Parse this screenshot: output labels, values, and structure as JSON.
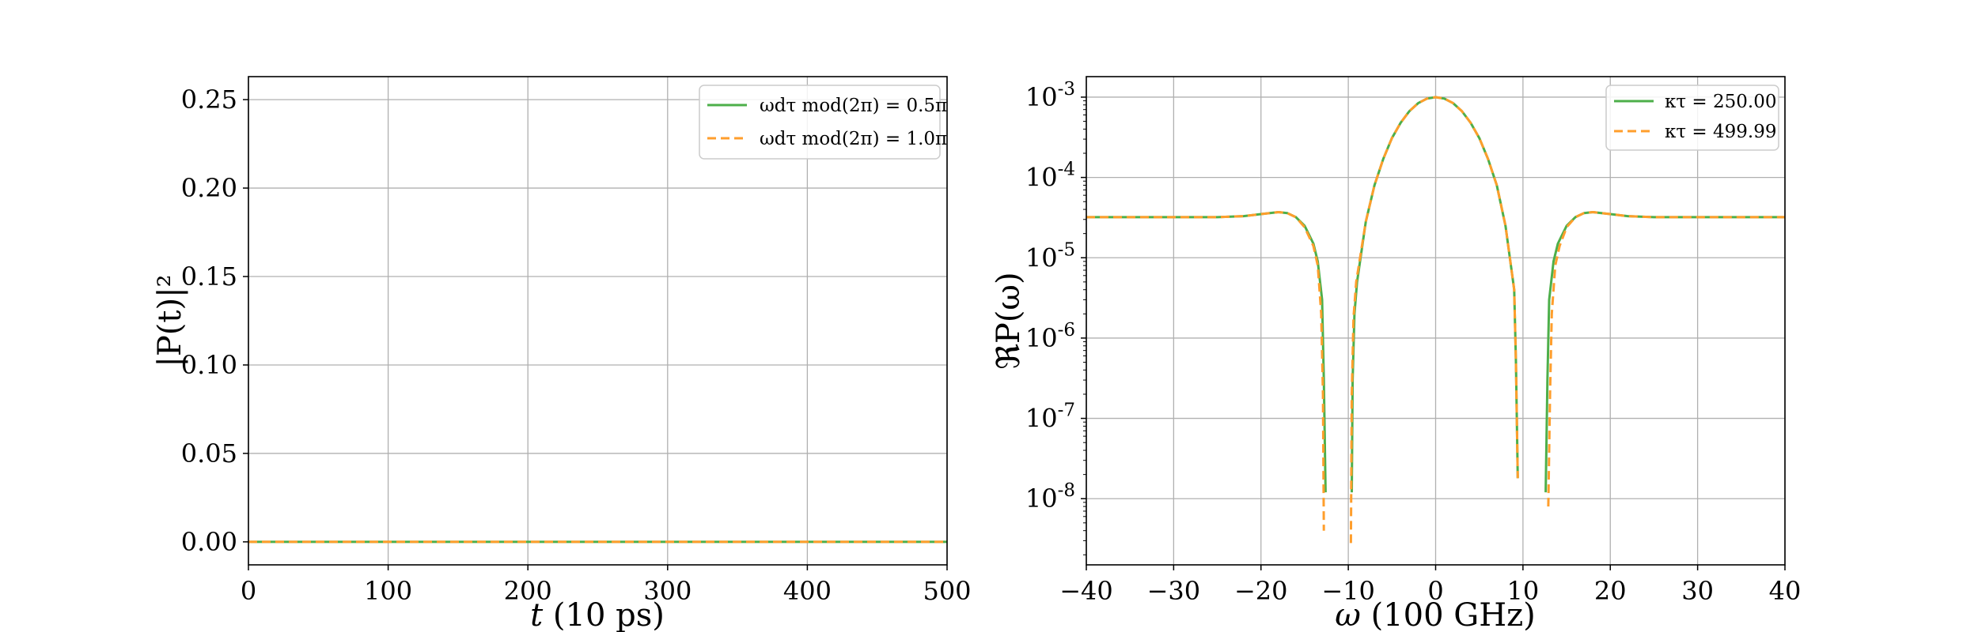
{
  "colors": {
    "green": "#4daf4a",
    "orange": "#ff9e2c",
    "grid": "#b0b0b0",
    "frame": "#000000",
    "background": "#ffffff"
  },
  "chart_data": [
    {
      "type": "line",
      "xlabel": "t (10 ps)",
      "ylabel": "|P(t)|²",
      "xlim": [
        0,
        500
      ],
      "ylim": [
        -0.013,
        0.263
      ],
      "xticks": [
        0,
        100,
        200,
        300,
        400,
        500
      ],
      "xtick_labels": [
        "0",
        "100",
        "200",
        "300",
        "400",
        "500"
      ],
      "yticks": [
        0.0,
        0.05,
        0.1,
        0.15,
        0.2,
        0.25
      ],
      "ytick_labels": [
        "0.00",
        "0.05",
        "0.10",
        "0.15",
        "0.20",
        "0.25"
      ],
      "grid": true,
      "legend_position": "top-right",
      "series": [
        {
          "name": "ωdτ mod(2π) = 0.5π",
          "style": "solid",
          "color": "#4daf4a",
          "x": [
            0,
            50,
            100,
            150,
            200,
            250,
            300,
            350,
            400,
            450,
            500
          ],
          "y": [
            0,
            0,
            0,
            0,
            0,
            0,
            0,
            0,
            0,
            0,
            0
          ]
        },
        {
          "name": "ωdτ mod(2π) = 1.0π",
          "style": "dashed",
          "color": "#ff9e2c",
          "x": [
            0,
            50,
            100,
            150,
            200,
            250,
            300,
            350,
            400,
            450,
            500
          ],
          "y": [
            0,
            0,
            0,
            0,
            0,
            0,
            0,
            0,
            0,
            0,
            0
          ]
        }
      ]
    },
    {
      "type": "line",
      "xlabel": "ω (100 GHz)",
      "ylabel": "ℜP(ω)",
      "xlim": [
        -40,
        40
      ],
      "ylim": [
        1.5e-09,
        0.0018
      ],
      "yscale": "log",
      "xticks": [
        -40,
        -30,
        -20,
        -10,
        0,
        10,
        20,
        30,
        40
      ],
      "xtick_labels": [
        "−40",
        "−30",
        "−20",
        "−10",
        "0",
        "10",
        "20",
        "30",
        "40"
      ],
      "yticks_exp": [
        -3,
        -4,
        -5,
        -6,
        -7,
        -8
      ],
      "grid": true,
      "legend_position": "top-right",
      "series": [
        {
          "name": "κτ = 250.00",
          "style": "solid",
          "color": "#4daf4a",
          "x": [
            -40,
            -30,
            -25,
            -22,
            -20,
            -18,
            -17,
            -16,
            -15,
            -14,
            -13.5,
            -13,
            -12.8,
            -12.6,
            null,
            -9.6,
            -9.5,
            -9.3,
            -9,
            -8,
            -7,
            -6,
            -5,
            -4,
            -3,
            -2,
            -1,
            0,
            1,
            2,
            3,
            4,
            5,
            6,
            7,
            8,
            9,
            9.2,
            9.4,
            null,
            12.6,
            12.8,
            13,
            13.5,
            14,
            15,
            16,
            17,
            18,
            20,
            22,
            25,
            30,
            40
          ],
          "y": [
            3.2e-05,
            3.2e-05,
            3.2e-05,
            3.3e-05,
            3.5e-05,
            3.7e-05,
            3.6e-05,
            3.2e-05,
            2.5e-05,
            1.5e-05,
            9e-06,
            3e-06,
            3e-07,
            1.2e-08,
            null,
            1.2e-08,
            3e-07,
            2e-06,
            5e-06,
            2.8e-05,
            8e-05,
            0.00017,
            0.00031,
            0.00048,
            0.00067,
            0.00084,
            0.00096,
            0.001,
            0.00096,
            0.00084,
            0.00067,
            0.00048,
            0.00031,
            0.00017,
            8e-05,
            2.5e-05,
            4e-06,
            5e-07,
            1.8e-08,
            null,
            1.2e-08,
            3e-07,
            3e-06,
            9e-06,
            1.5e-05,
            2.5e-05,
            3.2e-05,
            3.6e-05,
            3.7e-05,
            3.5e-05,
            3.3e-05,
            3.2e-05,
            3.2e-05,
            3.2e-05
          ]
        },
        {
          "name": "κτ = 499.99",
          "style": "dashed",
          "color": "#ff9e2c",
          "x": [
            -40,
            -30,
            -25,
            -22,
            -20,
            -18,
            -17,
            -16,
            -15,
            -14,
            -13.5,
            -13.1,
            -12.9,
            -12.8,
            null,
            -9.7,
            -9.6,
            -9.4,
            -9.1,
            -8,
            -7,
            -6,
            -5,
            -4,
            -3,
            -2,
            -1,
            0,
            1,
            2,
            3,
            4,
            5,
            6,
            7,
            8,
            9,
            9.2,
            9.4,
            null,
            12.9,
            13.1,
            13.3,
            13.7,
            14.2,
            15,
            16,
            17,
            18,
            20,
            22,
            25,
            30,
            40
          ],
          "y": [
            3.2e-05,
            3.2e-05,
            3.2e-05,
            3.3e-05,
            3.5e-05,
            3.7e-05,
            3.6e-05,
            3.2e-05,
            2.4e-05,
            1.4e-05,
            8e-06,
            2e-06,
            2e-07,
            4e-09,
            null,
            2.8e-09,
            2e-07,
            1.8e-06,
            5e-06,
            2.8e-05,
            8e-05,
            0.00017,
            0.00031,
            0.00048,
            0.00067,
            0.00084,
            0.00096,
            0.001,
            0.00096,
            0.00084,
            0.00067,
            0.00048,
            0.00031,
            0.00017,
            8e-05,
            2.5e-05,
            4e-06,
            5e-07,
            1.8e-08,
            null,
            8e-09,
            2e-07,
            2e-06,
            8e-06,
            1.4e-05,
            2.4e-05,
            3.2e-05,
            3.6e-05,
            3.7e-05,
            3.5e-05,
            3.3e-05,
            3.2e-05,
            3.2e-05,
            3.2e-05
          ]
        }
      ]
    }
  ]
}
